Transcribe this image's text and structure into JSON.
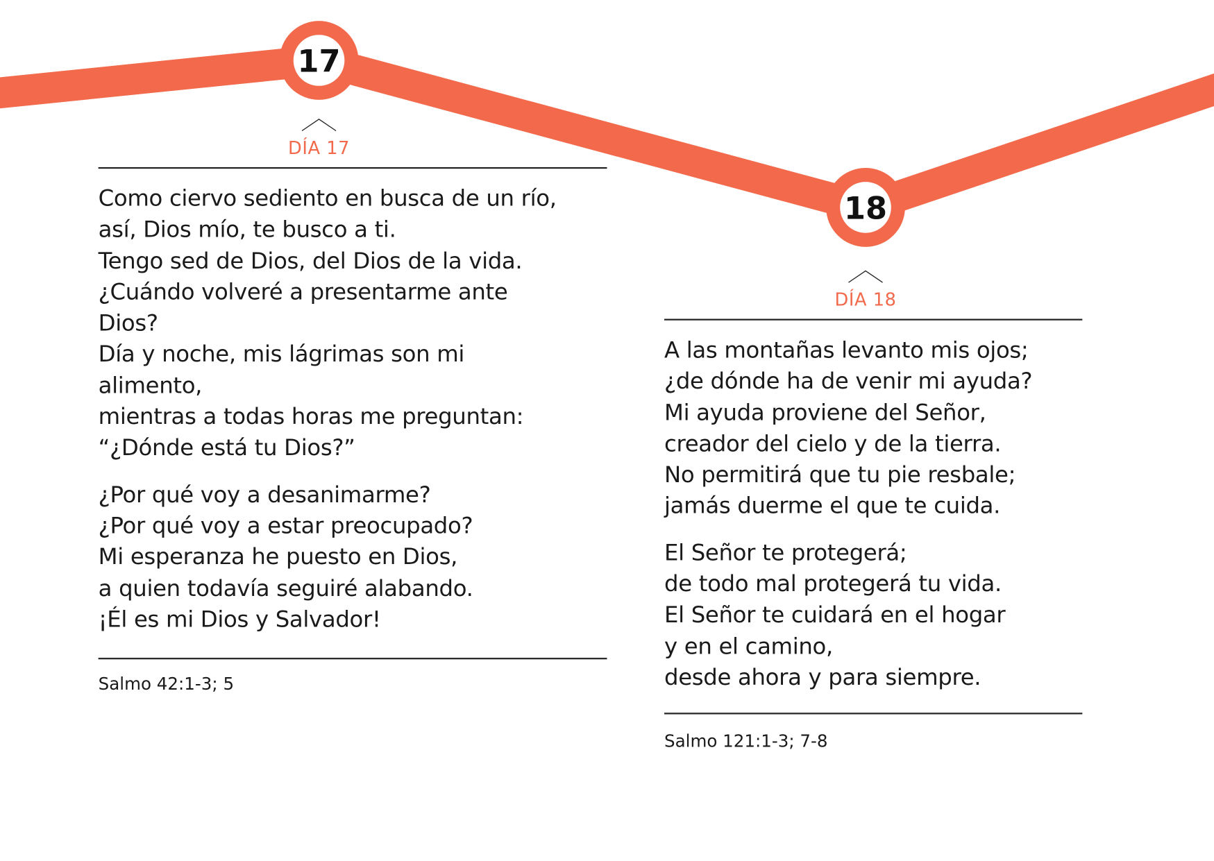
{
  "accent_color": "#f26a4b",
  "days": [
    {
      "number": "17",
      "label": "DÍA 17",
      "stanzas": [
        [
          "Como ciervo sediento en busca de un río,",
          "así, Dios mío, te busco a ti.",
          "Tengo sed de Dios, del Dios de la vida.",
          "¿Cuándo volveré a presentarme ante",
          "Dios?",
          "Día y noche, mis lágrimas son mi",
          "alimento,",
          "mientras a todas horas me preguntan:",
          "“¿Dónde está tu Dios?”"
        ],
        [
          "¿Por qué voy a desanimarme?",
          "¿Por qué voy a estar preocupado?",
          "Mi esperanza he puesto en Dios,",
          "a quien todavía seguiré alabando.",
          "¡Él es mi Dios y Salvador!"
        ]
      ],
      "citation": "Salmo 42:1-3; 5"
    },
    {
      "number": "18",
      "label": "DÍA 18",
      "stanzas": [
        [
          "A las montañas levanto mis ojos;",
          "¿de dónde ha de venir mi ayuda?",
          "Mi ayuda proviene del Señor,",
          "creador del cielo y de la tierra.",
          "No permitirá que tu pie resbale;",
          "jamás duerme el que te cuida."
        ],
        [
          "El Señor te protegerá;",
          "de todo mal protegerá tu vida.",
          "El Señor te cuidará en el hogar",
          "y en el camino,",
          "desde ahora y para siempre."
        ]
      ],
      "citation": "Salmo 121:1-3; 7-8"
    }
  ]
}
